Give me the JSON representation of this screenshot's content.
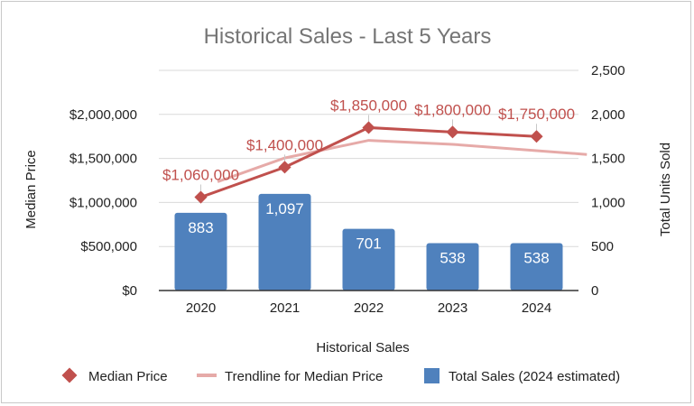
{
  "chart_data": {
    "type": "bar",
    "title": "Historical Sales - Last 5 Years",
    "xlabel": "Historical Sales",
    "ylabel_left": "Median Price",
    "ylabel_right": "Total Units Sold",
    "categories": [
      "2020",
      "2021",
      "2022",
      "2023",
      "2024"
    ],
    "y_left": {
      "range": [
        0,
        2500000
      ],
      "ticks": [
        0,
        500000,
        1000000,
        1500000,
        2000000
      ],
      "tick_labels": [
        "$0",
        "$500,000",
        "$1,000,000",
        "$1,500,000",
        "$2,000,000"
      ]
    },
    "y_right": {
      "range": [
        0,
        2500
      ],
      "ticks": [
        0,
        500,
        1000,
        1500,
        2000,
        2500
      ],
      "tick_labels": [
        "0",
        "500",
        "1,000",
        "1,500",
        "2,000",
        "2,500"
      ]
    },
    "series": [
      {
        "name": "Median Price",
        "type": "line",
        "axis": "left",
        "color": "#c0504d",
        "values": [
          1060000,
          1400000,
          1850000,
          1800000,
          1750000
        ],
        "labels": [
          "$1,060,000",
          "$1,400,000",
          "$1,850,000",
          "$1,800,000",
          "$1,750,000"
        ]
      },
      {
        "name": "Trendline for Median Price",
        "type": "line",
        "axis": "left",
        "color": "#e6aaa8",
        "x": [
          1.2,
          2,
          3,
          4,
          5.6
        ],
        "values": [
          1235000,
          1505000,
          1705000,
          1660000,
          1545000
        ]
      },
      {
        "name": "Total Sales (2024 estimated)",
        "type": "bar",
        "axis": "right",
        "color": "#4f81bd",
        "values": [
          883,
          1097,
          701,
          538,
          538
        ],
        "labels": [
          "883",
          "1,097",
          "701",
          "538",
          "538"
        ]
      }
    ],
    "grid": true,
    "legend_position": "bottom"
  }
}
